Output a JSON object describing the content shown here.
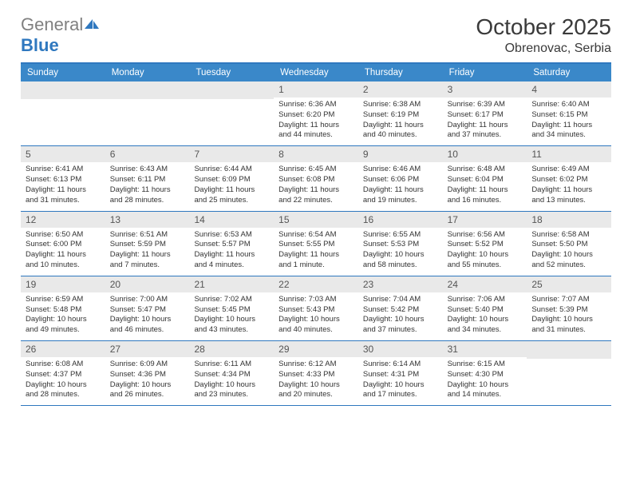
{
  "logo": {
    "part1": "General",
    "part2": "Blue"
  },
  "title": "October 2025",
  "location": "Obrenovac, Serbia",
  "colors": {
    "header_bg": "#3a88c9",
    "border": "#2f78bf",
    "daynum_bg": "#e9e9e9",
    "text": "#333333",
    "logo_gray": "#808080",
    "logo_blue": "#2f78bf",
    "white": "#ffffff"
  },
  "typography": {
    "title_fontsize": 28,
    "location_fontsize": 16,
    "header_fontsize": 11.5,
    "body_fontsize": 9.5,
    "daynum_fontsize": 12
  },
  "day_names": [
    "Sunday",
    "Monday",
    "Tuesday",
    "Wednesday",
    "Thursday",
    "Friday",
    "Saturday"
  ],
  "weeks": [
    [
      null,
      null,
      null,
      {
        "n": "1",
        "l1": "Sunrise: 6:36 AM",
        "l2": "Sunset: 6:20 PM",
        "l3": "Daylight: 11 hours",
        "l4": "and 44 minutes."
      },
      {
        "n": "2",
        "l1": "Sunrise: 6:38 AM",
        "l2": "Sunset: 6:19 PM",
        "l3": "Daylight: 11 hours",
        "l4": "and 40 minutes."
      },
      {
        "n": "3",
        "l1": "Sunrise: 6:39 AM",
        "l2": "Sunset: 6:17 PM",
        "l3": "Daylight: 11 hours",
        "l4": "and 37 minutes."
      },
      {
        "n": "4",
        "l1": "Sunrise: 6:40 AM",
        "l2": "Sunset: 6:15 PM",
        "l3": "Daylight: 11 hours",
        "l4": "and 34 minutes."
      }
    ],
    [
      {
        "n": "5",
        "l1": "Sunrise: 6:41 AM",
        "l2": "Sunset: 6:13 PM",
        "l3": "Daylight: 11 hours",
        "l4": "and 31 minutes."
      },
      {
        "n": "6",
        "l1": "Sunrise: 6:43 AM",
        "l2": "Sunset: 6:11 PM",
        "l3": "Daylight: 11 hours",
        "l4": "and 28 minutes."
      },
      {
        "n": "7",
        "l1": "Sunrise: 6:44 AM",
        "l2": "Sunset: 6:09 PM",
        "l3": "Daylight: 11 hours",
        "l4": "and 25 minutes."
      },
      {
        "n": "8",
        "l1": "Sunrise: 6:45 AM",
        "l2": "Sunset: 6:08 PM",
        "l3": "Daylight: 11 hours",
        "l4": "and 22 minutes."
      },
      {
        "n": "9",
        "l1": "Sunrise: 6:46 AM",
        "l2": "Sunset: 6:06 PM",
        "l3": "Daylight: 11 hours",
        "l4": "and 19 minutes."
      },
      {
        "n": "10",
        "l1": "Sunrise: 6:48 AM",
        "l2": "Sunset: 6:04 PM",
        "l3": "Daylight: 11 hours",
        "l4": "and 16 minutes."
      },
      {
        "n": "11",
        "l1": "Sunrise: 6:49 AM",
        "l2": "Sunset: 6:02 PM",
        "l3": "Daylight: 11 hours",
        "l4": "and 13 minutes."
      }
    ],
    [
      {
        "n": "12",
        "l1": "Sunrise: 6:50 AM",
        "l2": "Sunset: 6:00 PM",
        "l3": "Daylight: 11 hours",
        "l4": "and 10 minutes."
      },
      {
        "n": "13",
        "l1": "Sunrise: 6:51 AM",
        "l2": "Sunset: 5:59 PM",
        "l3": "Daylight: 11 hours",
        "l4": "and 7 minutes."
      },
      {
        "n": "14",
        "l1": "Sunrise: 6:53 AM",
        "l2": "Sunset: 5:57 PM",
        "l3": "Daylight: 11 hours",
        "l4": "and 4 minutes."
      },
      {
        "n": "15",
        "l1": "Sunrise: 6:54 AM",
        "l2": "Sunset: 5:55 PM",
        "l3": "Daylight: 11 hours",
        "l4": "and 1 minute."
      },
      {
        "n": "16",
        "l1": "Sunrise: 6:55 AM",
        "l2": "Sunset: 5:53 PM",
        "l3": "Daylight: 10 hours",
        "l4": "and 58 minutes."
      },
      {
        "n": "17",
        "l1": "Sunrise: 6:56 AM",
        "l2": "Sunset: 5:52 PM",
        "l3": "Daylight: 10 hours",
        "l4": "and 55 minutes."
      },
      {
        "n": "18",
        "l1": "Sunrise: 6:58 AM",
        "l2": "Sunset: 5:50 PM",
        "l3": "Daylight: 10 hours",
        "l4": "and 52 minutes."
      }
    ],
    [
      {
        "n": "19",
        "l1": "Sunrise: 6:59 AM",
        "l2": "Sunset: 5:48 PM",
        "l3": "Daylight: 10 hours",
        "l4": "and 49 minutes."
      },
      {
        "n": "20",
        "l1": "Sunrise: 7:00 AM",
        "l2": "Sunset: 5:47 PM",
        "l3": "Daylight: 10 hours",
        "l4": "and 46 minutes."
      },
      {
        "n": "21",
        "l1": "Sunrise: 7:02 AM",
        "l2": "Sunset: 5:45 PM",
        "l3": "Daylight: 10 hours",
        "l4": "and 43 minutes."
      },
      {
        "n": "22",
        "l1": "Sunrise: 7:03 AM",
        "l2": "Sunset: 5:43 PM",
        "l3": "Daylight: 10 hours",
        "l4": "and 40 minutes."
      },
      {
        "n": "23",
        "l1": "Sunrise: 7:04 AM",
        "l2": "Sunset: 5:42 PM",
        "l3": "Daylight: 10 hours",
        "l4": "and 37 minutes."
      },
      {
        "n": "24",
        "l1": "Sunrise: 7:06 AM",
        "l2": "Sunset: 5:40 PM",
        "l3": "Daylight: 10 hours",
        "l4": "and 34 minutes."
      },
      {
        "n": "25",
        "l1": "Sunrise: 7:07 AM",
        "l2": "Sunset: 5:39 PM",
        "l3": "Daylight: 10 hours",
        "l4": "and 31 minutes."
      }
    ],
    [
      {
        "n": "26",
        "l1": "Sunrise: 6:08 AM",
        "l2": "Sunset: 4:37 PM",
        "l3": "Daylight: 10 hours",
        "l4": "and 28 minutes."
      },
      {
        "n": "27",
        "l1": "Sunrise: 6:09 AM",
        "l2": "Sunset: 4:36 PM",
        "l3": "Daylight: 10 hours",
        "l4": "and 26 minutes."
      },
      {
        "n": "28",
        "l1": "Sunrise: 6:11 AM",
        "l2": "Sunset: 4:34 PM",
        "l3": "Daylight: 10 hours",
        "l4": "and 23 minutes."
      },
      {
        "n": "29",
        "l1": "Sunrise: 6:12 AM",
        "l2": "Sunset: 4:33 PM",
        "l3": "Daylight: 10 hours",
        "l4": "and 20 minutes."
      },
      {
        "n": "30",
        "l1": "Sunrise: 6:14 AM",
        "l2": "Sunset: 4:31 PM",
        "l3": "Daylight: 10 hours",
        "l4": "and 17 minutes."
      },
      {
        "n": "31",
        "l1": "Sunrise: 6:15 AM",
        "l2": "Sunset: 4:30 PM",
        "l3": "Daylight: 10 hours",
        "l4": "and 14 minutes."
      },
      null
    ]
  ]
}
